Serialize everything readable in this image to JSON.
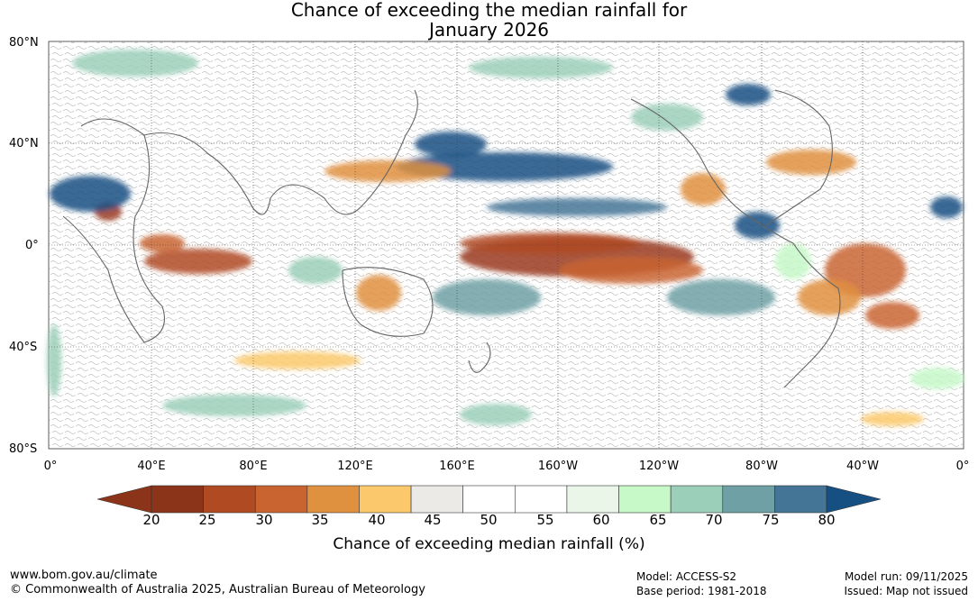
{
  "title": {
    "line1": "Chance of exceeding the median rainfall for",
    "line2": "January 2026"
  },
  "map": {
    "lat_labels": [
      "80°N",
      "40°N",
      "0°",
      "40°S",
      "80°S"
    ],
    "lon_labels": [
      "0°",
      "40°E",
      "80°E",
      "120°E",
      "160°E",
      "160°W",
      "120°W",
      "80°W",
      "40°W",
      "0°"
    ]
  },
  "colorbar": {
    "ticks": [
      "20",
      "25",
      "30",
      "35",
      "40",
      "45",
      "50",
      "55",
      "60",
      "65",
      "70",
      "75",
      "80"
    ],
    "colors": [
      "#8b3419",
      "#b04a23",
      "#c96431",
      "#e0913f",
      "#fbc96b",
      "#ebeae6",
      "#ffffff",
      "#ffffff",
      "#e9f6e8",
      "#c6f8c8",
      "#9bcfb9",
      "#6fa0a5",
      "#447596"
    ],
    "end_low": "#8b3419",
    "end_high": "#164f82",
    "label": "Chance of exceeding median rainfall (%)"
  },
  "footer": {
    "url": "www.bom.gov.au/climate",
    "copyright": "© Commonwealth of Australia 2025, Australian Bureau of Meteorology",
    "model": "Model: ACCESS-S2",
    "base_period": "Base period: 1981-2018",
    "model_run": "Model run: 09/11/2025",
    "issued": "Issued: Map not issued"
  }
}
